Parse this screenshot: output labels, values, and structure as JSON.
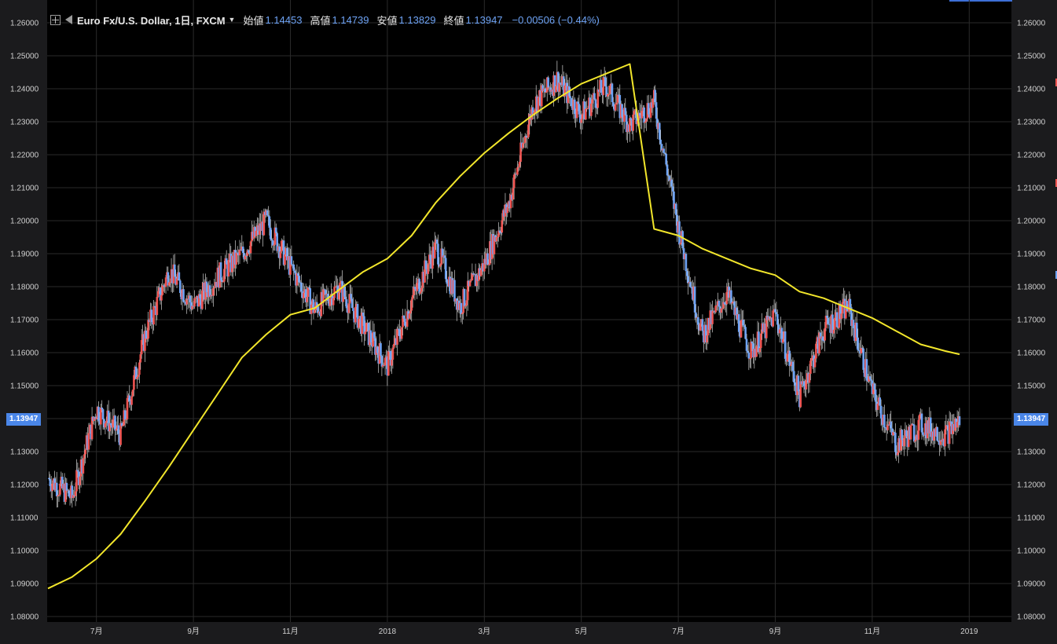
{
  "header": {
    "symbol": "Euro Fx/U.S. Dollar, 1日, FXCM",
    "open_label": "始値",
    "open_value": "1.14453",
    "high_label": "高値",
    "high_value": "1.14739",
    "low_label": "安値",
    "low_value": "1.13829",
    "close_label": "終値",
    "close_value": "1.13947",
    "change": "−0.00506 (−0.44%)"
  },
  "price_badge": "1.13947",
  "colors": {
    "up": "#ef5350",
    "down": "#6ea3f5",
    "ma": "#f2e62b",
    "grid": "#2a2a2a",
    "accent": "#4a86e8"
  },
  "chart_data": {
    "type": "line",
    "title": "Euro Fx/U.S. Dollar, 1日, FXCM",
    "y_ticks": [
      "1.08000",
      "1.09000",
      "1.10000",
      "1.11000",
      "1.12000",
      "1.13000",
      "1.14000",
      "1.15000",
      "1.16000",
      "1.17000",
      "1.18000",
      "1.19000",
      "1.20000",
      "1.21000",
      "1.22000",
      "1.23000",
      "1.24000",
      "1.25000",
      "1.26000"
    ],
    "ylim": [
      1.08,
      1.26
    ],
    "x_tick_labels": [
      "7月",
      "9月",
      "11月",
      "2018",
      "3月",
      "5月",
      "7月",
      "9月",
      "11月",
      "2019"
    ],
    "x_tick_months": [
      1,
      3,
      5,
      7,
      9,
      11,
      13,
      15,
      17,
      19
    ],
    "grid": true,
    "series": [
      {
        "type": "candlestick",
        "x": [
          0,
          0.5,
          1,
          1.5,
          2,
          2.5,
          3,
          3.5,
          4,
          4.5,
          5,
          5.5,
          6,
          6.5,
          7,
          7.5,
          8,
          8.5,
          9,
          9.5,
          10,
          10.5,
          11,
          11.5,
          12,
          12.5,
          13,
          13.5,
          14,
          14.5,
          15,
          15.5,
          16,
          16.5,
          17,
          17.5,
          18,
          18.5,
          18.8
        ],
        "close": [
          1.122,
          1.116,
          1.143,
          1.135,
          1.165,
          1.185,
          1.174,
          1.183,
          1.19,
          1.2,
          1.186,
          1.173,
          1.18,
          1.168,
          1.156,
          1.176,
          1.192,
          1.174,
          1.187,
          1.205,
          1.235,
          1.243,
          1.232,
          1.241,
          1.229,
          1.236,
          1.198,
          1.165,
          1.178,
          1.16,
          1.172,
          1.147,
          1.167,
          1.174,
          1.148,
          1.132,
          1.138,
          1.135,
          1.1395
        ]
      },
      {
        "type": "line",
        "x": [
          0,
          0.5,
          1,
          1.5,
          2,
          2.5,
          3,
          3.5,
          4,
          4.5,
          5,
          5.5,
          6,
          6.5,
          7,
          7.5,
          8,
          8.5,
          9,
          9.5,
          10,
          10.5,
          11,
          11.5,
          12,
          12.5,
          13,
          13.5,
          14,
          14.5,
          15,
          15.5,
          16,
          16.5,
          17,
          17.5,
          18,
          18.5,
          18.8
        ],
        "values": [
          1.0885,
          1.092,
          1.0975,
          1.105,
          1.115,
          1.1255,
          1.1365,
          1.1475,
          1.1585,
          1.1655,
          1.1715,
          1.1735,
          1.179,
          1.1845,
          1.1885,
          1.1955,
          1.2055,
          1.2135,
          1.2205,
          1.2265,
          1.232,
          1.237,
          1.2415,
          1.2445,
          1.2475,
          1.1975,
          1.1955,
          1.1915,
          1.1885,
          1.1855,
          1.1835,
          1.1785,
          1.1765,
          1.1735,
          1.1705,
          1.1665,
          1.1625,
          1.1605,
          1.1595
        ]
      }
    ]
  }
}
